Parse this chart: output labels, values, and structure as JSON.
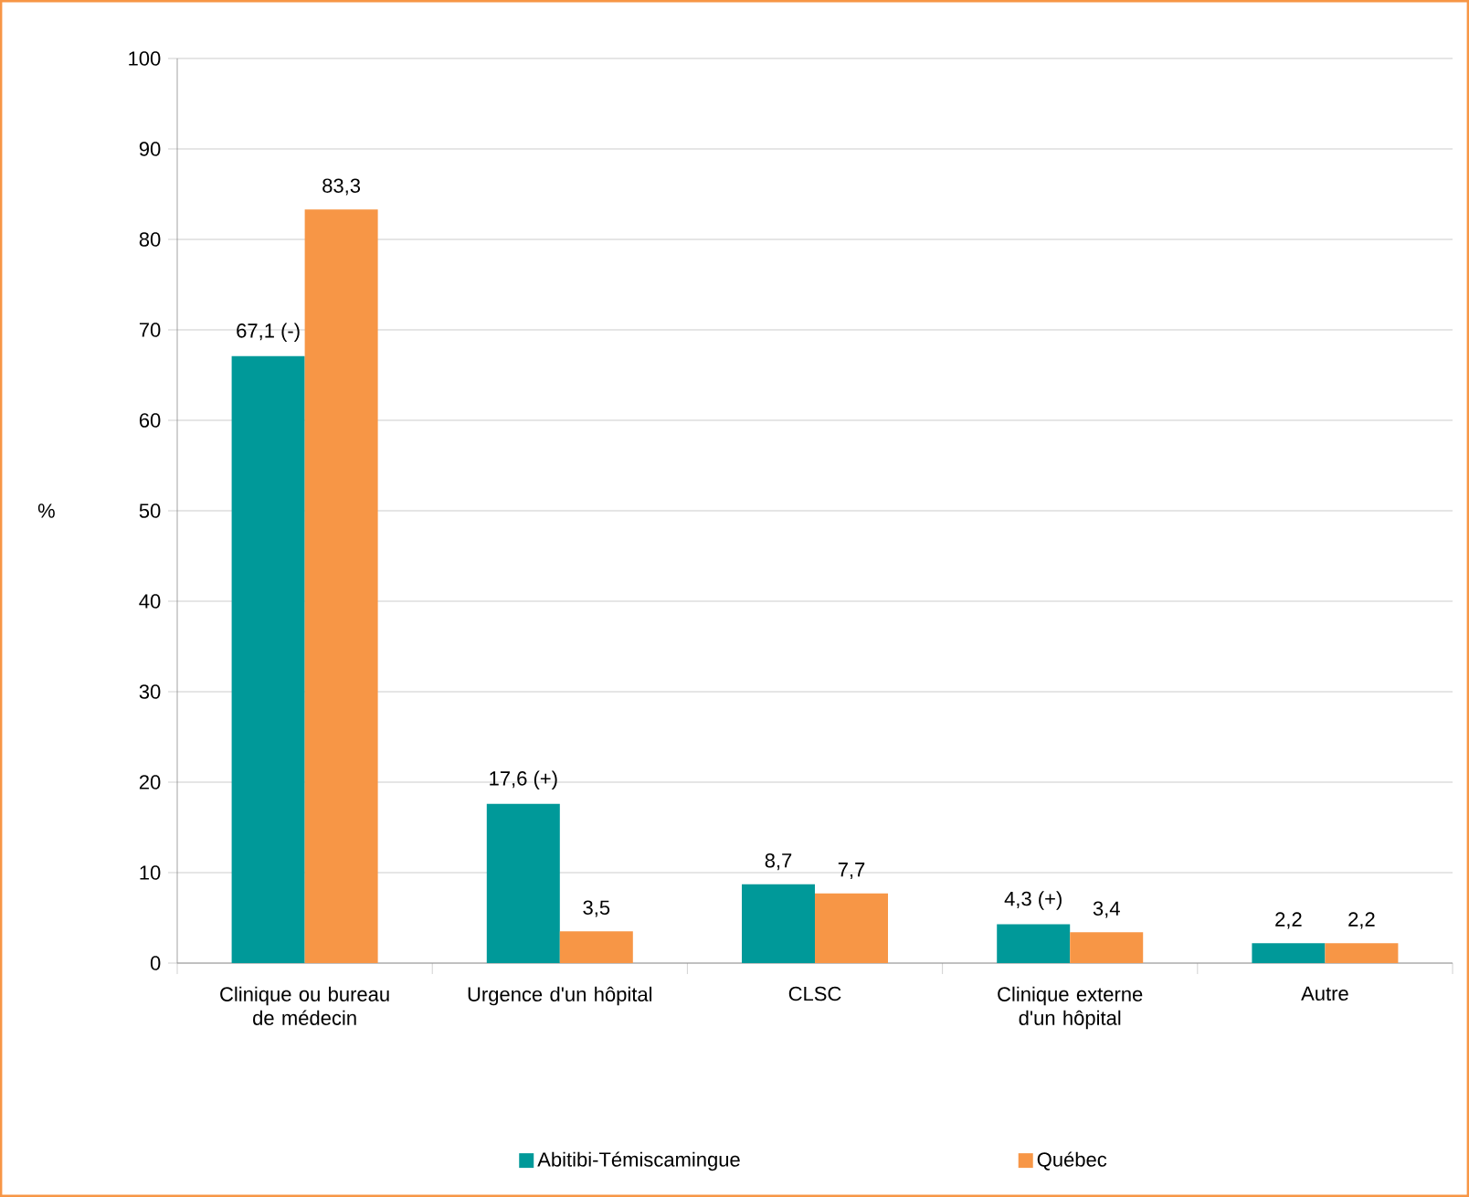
{
  "chart_data": {
    "type": "bar",
    "ylabel": "%",
    "categories": [
      "Clinique ou bureau de médecin",
      "Urgence d'un hôpital",
      "CLSC",
      "Clinique externe d'un hôpital",
      "Autre"
    ],
    "series": [
      {
        "name": "Abitibi-Témiscamingue",
        "color": "#009999",
        "values": [
          67.1,
          17.6,
          8.7,
          4.3,
          2.2
        ],
        "value_labels": [
          "67,1 (-)",
          "17,6 (+)",
          "8,7",
          "4,3 (+)",
          "2,2"
        ]
      },
      {
        "name": "Québec",
        "color": "#f79646",
        "values": [
          83.3,
          3.5,
          7.7,
          3.4,
          2.2
        ],
        "value_labels": [
          "83,3",
          "3,5",
          "7,7",
          "3,4",
          "2,2"
        ]
      }
    ],
    "ylim": [
      0,
      100
    ],
    "yticks": [
      0,
      10,
      20,
      30,
      40,
      50,
      60,
      70,
      80,
      90,
      100
    ],
    "grid": "y",
    "legend": "bottom"
  }
}
